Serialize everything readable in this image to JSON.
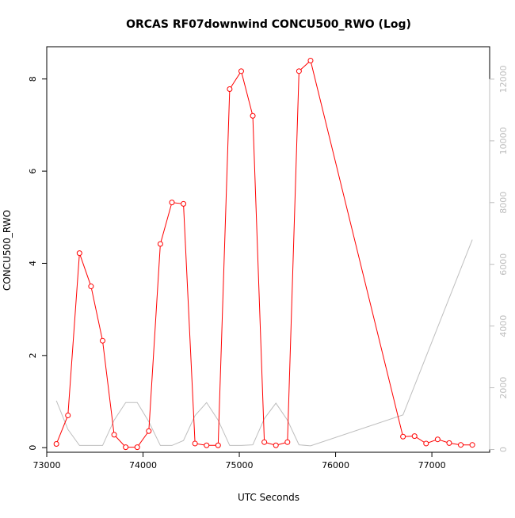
{
  "chart_data": {
    "type": "line",
    "title": "ORCAS RF07downwind CONCU500_RWO (Log)",
    "xlabel": "UTC Seconds",
    "ylabel": "CONCU500_RWO",
    "xlim": [
      73000,
      77600
    ],
    "ylim": [
      -0.1,
      8.7
    ],
    "y2lim": [
      -90,
      13050
    ],
    "x_ticks": [
      73000,
      74000,
      75000,
      76000,
      77000
    ],
    "y_ticks": [
      0,
      2,
      4,
      6,
      8
    ],
    "y2_ticks": [
      0,
      2000,
      4000,
      6000,
      8000,
      10000,
      12000
    ],
    "grid": false,
    "colors": {
      "primary": "#ff0000",
      "secondary": "#bebebe",
      "axis": "#000000"
    },
    "series": [
      {
        "axis": "left",
        "marker": "open-circle",
        "x": [
          73100,
          73220,
          73340,
          73460,
          73580,
          73700,
          73820,
          73940,
          74060,
          74180,
          74300,
          74420,
          74540,
          74660,
          74780,
          74900,
          75020,
          75140,
          75260,
          75380,
          75500,
          75620,
          75740,
          76700,
          76820,
          76940,
          77060,
          77180,
          77300,
          77420
        ],
        "values": [
          0.08,
          0.7,
          4.22,
          3.5,
          2.32,
          0.28,
          0.01,
          0.01,
          0.36,
          4.42,
          5.32,
          5.29,
          0.09,
          0.05,
          0.05,
          7.78,
          8.17,
          7.2,
          0.12,
          0.05,
          0.12,
          8.17,
          8.4,
          0.24,
          0.25,
          0.09,
          0.18,
          0.1,
          0.06,
          0.06
        ]
      },
      {
        "axis": "right",
        "x": [
          73100,
          73220,
          73340,
          73580,
          73700,
          73820,
          73940,
          74060,
          74180,
          74300,
          74420,
          74540,
          74660,
          74780,
          74900,
          75020,
          75140,
          75260,
          75380,
          75500,
          75620,
          75740,
          76700,
          77420
        ],
        "values": [
          1580,
          650,
          130,
          130,
          950,
          1520,
          1520,
          900,
          130,
          130,
          290,
          1100,
          1520,
          950,
          130,
          130,
          150,
          1000,
          1500,
          950,
          150,
          120,
          1120,
          6800
        ]
      }
    ]
  }
}
